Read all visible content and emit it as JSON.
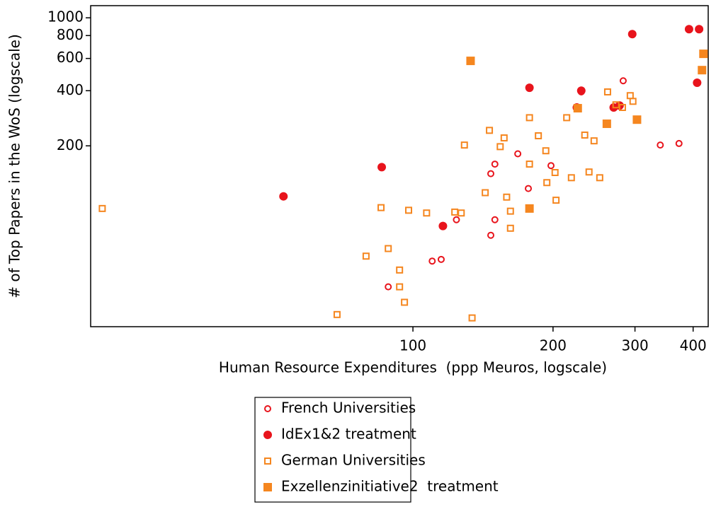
{
  "chart_data": {
    "type": "scatter",
    "x_label": "Human Resource Expenditures  (ppp Meuros, logscale)",
    "y_label": "# of Top Papers in the WoS (logscale)",
    "xscale": "log",
    "yscale": "log",
    "xlim": [
      20.3,
      431
    ],
    "ylim": [
      20.6,
      1165
    ],
    "xticks": [
      100,
      200,
      300,
      400
    ],
    "yticks": [
      200,
      400,
      600,
      800,
      1000
    ],
    "grid": false,
    "legend": "bottom",
    "series": [
      {
        "name": "French Universities",
        "color": "#e8141c",
        "marker": "circle",
        "filled": false,
        "x": [
          88.5,
          110,
          115,
          124,
          147,
          150,
          147,
          150,
          168,
          177,
          198,
          230,
          283,
          340,
          373
        ],
        "values": [
          34,
          47,
          48,
          79,
          65,
          79,
          141,
          159,
          181,
          117,
          156,
          394,
          453,
          202,
          206
        ]
      },
      {
        "name": "IdEx1&2 treatment",
        "color": "#e8141c",
        "marker": "circle",
        "filled": true,
        "x": [
          52.7,
          85.7,
          116,
          178,
          230,
          225,
          270,
          278,
          296,
          392,
          412,
          408
        ],
        "values": [
          106,
          153,
          73,
          415,
          400,
          324,
          324,
          332,
          815,
          867,
          867,
          442
        ]
      },
      {
        "name": "German Universities",
        "color": "#f5861f",
        "marker": "square",
        "filled": false,
        "x": [
          21.5,
          68.7,
          79.3,
          85.4,
          88.5,
          93.6,
          93.6,
          95.9,
          97.9,
          107,
          123,
          127,
          129,
          134,
          143,
          146,
          154,
          157,
          159,
          162,
          162,
          178,
          178,
          186,
          193,
          194,
          202,
          203,
          214,
          219,
          234,
          239,
          245,
          252,
          262,
          273,
          282,
          293,
          297
        ],
        "values": [
          91,
          24,
          50,
          92,
          55,
          42,
          34,
          28,
          89,
          86,
          87,
          86,
          202,
          23,
          111,
          243,
          198,
          221,
          105,
          71,
          88,
          285,
          159,
          227,
          188,
          126,
          143,
          101,
          285,
          134,
          229,
          144,
          213,
          134,
          394,
          335,
          324,
          376,
          350
        ]
      },
      {
        "name": "Exzellenzinitiative2  treatment",
        "color": "#f5861f",
        "marker": "square",
        "filled": true,
        "x": [
          133,
          178,
          226,
          261,
          303,
          418,
          421
        ],
        "values": [
          582,
          91,
          321,
          264,
          278,
          518,
          636
        ]
      }
    ]
  }
}
